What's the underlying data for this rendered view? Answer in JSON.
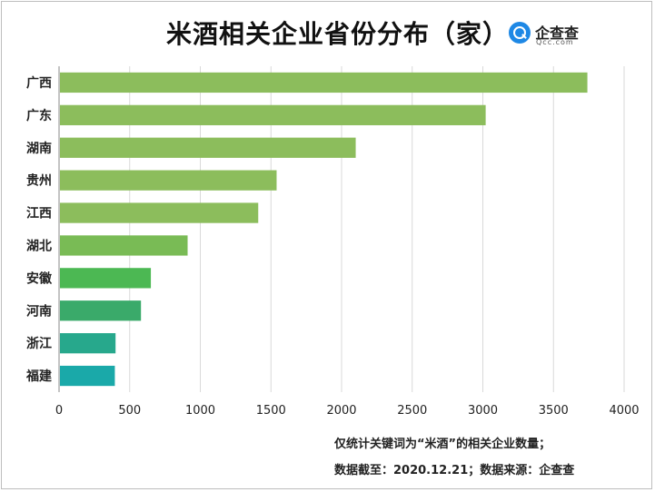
{
  "logo": {
    "name": "企查查",
    "url_text": "Qcc.com"
  },
  "footnotes": {
    "line1": "仅统计关键词为“米酒”的相关企业数量；",
    "line2": "数据截至：2020.12.21；数据来源：企查查"
  },
  "chart_data": {
    "type": "bar",
    "orientation": "horizontal",
    "title": "米酒相关企业省份分布（家）",
    "categories": [
      "广西",
      "广东",
      "湖南",
      "贵州",
      "江西",
      "湖北",
      "安徽",
      "河南",
      "浙江",
      "福建"
    ],
    "values": [
      3740,
      3020,
      2100,
      1540,
      1410,
      910,
      650,
      580,
      400,
      395
    ],
    "colors": [
      "#8cbd5c",
      "#8cbd5c",
      "#8cbd5c",
      "#8cbd5c",
      "#8cbd5c",
      "#79bb55",
      "#4cb853",
      "#3aaa6a",
      "#27a88c",
      "#1aa9a9"
    ],
    "xlim": [
      0,
      4000
    ],
    "xticks": [
      0,
      500,
      1000,
      1500,
      2000,
      2500,
      3000,
      3500,
      4000
    ],
    "grid": true,
    "legend": "none"
  }
}
